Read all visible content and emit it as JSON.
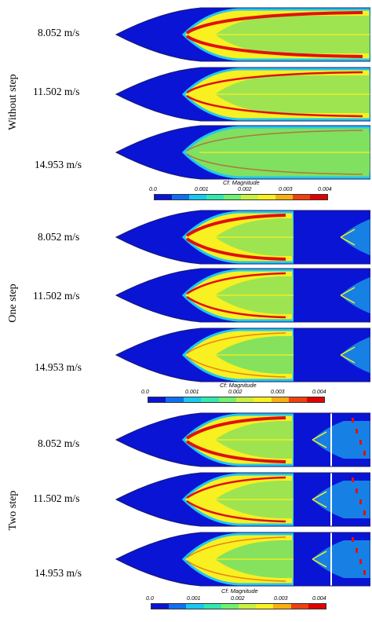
{
  "groups": [
    {
      "label": "Without step",
      "speeds": [
        "8.052 m/s",
        "11.502 m/s",
        "14.953 m/s"
      ],
      "step_count": 0
    },
    {
      "label": "One step",
      "speeds": [
        "8.052 m/s",
        "11.502 m/s",
        "14.953 m/s"
      ],
      "step_count": 1
    },
    {
      "label": "Two step",
      "speeds": [
        "8.052 m/s",
        "11.502 m/s",
        "14.953 m/s"
      ],
      "step_count": 2
    }
  ],
  "colorbar": {
    "title": "Cf: Magnitude",
    "ticks": [
      "0.0",
      "0.001",
      "0.002",
      "0.003",
      "0.004"
    ],
    "colors": [
      "#0a14d4",
      "#1070f0",
      "#18c8f0",
      "#30e8b0",
      "#70f070",
      "#c8f040",
      "#f8f020",
      "#f8b010",
      "#f04010",
      "#e00000"
    ]
  },
  "palette": {
    "blue": "#0a14d4",
    "red": "#e01010",
    "yellow": "#f8f020",
    "green": "#80e060",
    "cyan": "#20c8f0"
  }
}
